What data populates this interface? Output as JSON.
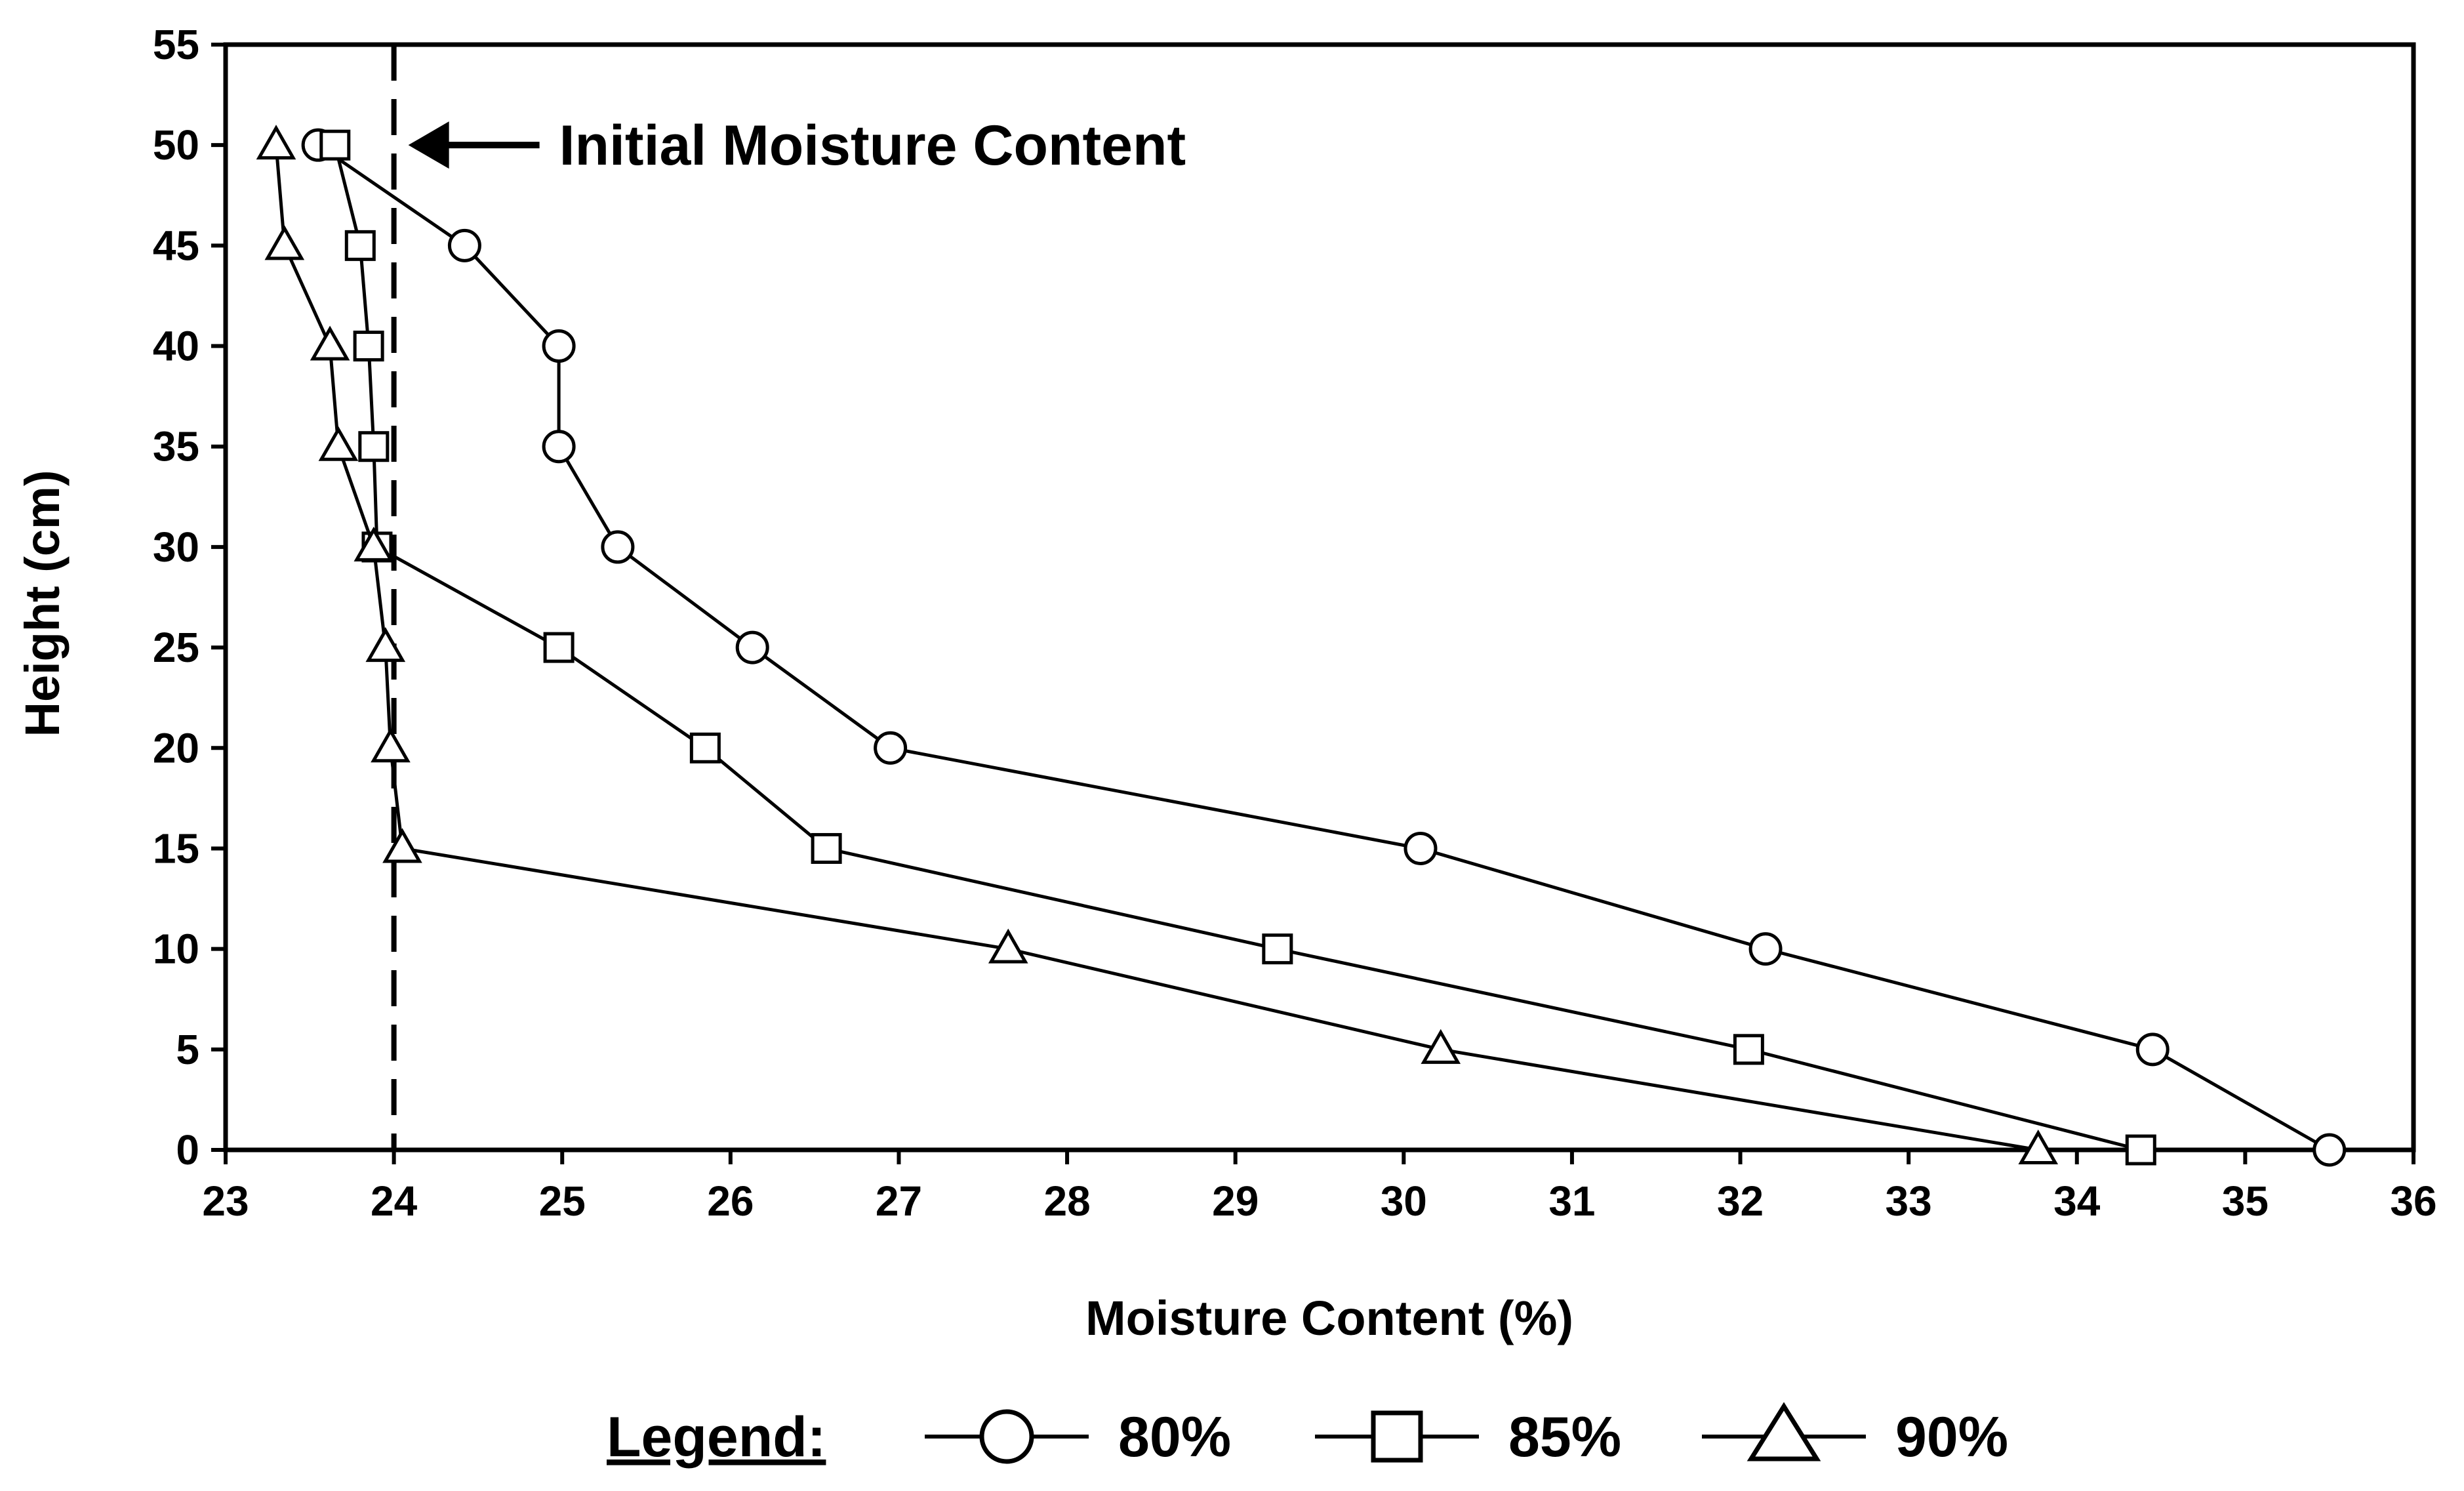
{
  "chart_data": {
    "type": "line",
    "title": "",
    "xlabel": "Moisture Content (%)",
    "ylabel": "Height (cm)",
    "xlim": [
      23,
      36
    ],
    "ylim": [
      0,
      55
    ],
    "x_ticks": [
      23,
      24,
      25,
      26,
      27,
      28,
      29,
      30,
      31,
      32,
      33,
      34,
      35,
      36
    ],
    "y_ticks": [
      0,
      5,
      10,
      15,
      20,
      25,
      30,
      35,
      40,
      45,
      50,
      55
    ],
    "grid": false,
    "orientation": "vertical-profile",
    "series": [
      {
        "name": "80%",
        "marker": "circle",
        "points": [
          {
            "x": 23.55,
            "y": 50
          },
          {
            "x": 24.42,
            "y": 45
          },
          {
            "x": 24.98,
            "y": 40
          },
          {
            "x": 24.98,
            "y": 35
          },
          {
            "x": 25.33,
            "y": 30
          },
          {
            "x": 26.13,
            "y": 25
          },
          {
            "x": 26.95,
            "y": 20
          },
          {
            "x": 30.1,
            "y": 15
          },
          {
            "x": 32.15,
            "y": 10
          },
          {
            "x": 34.45,
            "y": 5
          },
          {
            "x": 35.5,
            "y": 0
          }
        ]
      },
      {
        "name": "85%",
        "marker": "square",
        "points": [
          {
            "x": 23.65,
            "y": 50
          },
          {
            "x": 23.8,
            "y": 45
          },
          {
            "x": 23.85,
            "y": 40
          },
          {
            "x": 23.88,
            "y": 35
          },
          {
            "x": 23.9,
            "y": 30
          },
          {
            "x": 24.98,
            "y": 25
          },
          {
            "x": 25.85,
            "y": 20
          },
          {
            "x": 26.57,
            "y": 15
          },
          {
            "x": 29.25,
            "y": 10
          },
          {
            "x": 32.05,
            "y": 5
          },
          {
            "x": 34.38,
            "y": 0
          }
        ]
      },
      {
        "name": "90%",
        "marker": "triangle",
        "points": [
          {
            "x": 23.3,
            "y": 50
          },
          {
            "x": 23.35,
            "y": 45
          },
          {
            "x": 23.62,
            "y": 40
          },
          {
            "x": 23.67,
            "y": 35
          },
          {
            "x": 23.88,
            "y": 30
          },
          {
            "x": 23.95,
            "y": 25
          },
          {
            "x": 23.98,
            "y": 20
          },
          {
            "x": 24.05,
            "y": 15
          },
          {
            "x": 27.65,
            "y": 10
          },
          {
            "x": 30.22,
            "y": 5
          },
          {
            "x": 33.77,
            "y": 0
          }
        ]
      }
    ],
    "reference_line": {
      "x": 24,
      "style": "dashed"
    },
    "annotation": {
      "text": "Initial Moisture Content",
      "arrow": "left",
      "y": 50
    },
    "legend": {
      "title": "Legend:",
      "placement": "bottom"
    }
  }
}
